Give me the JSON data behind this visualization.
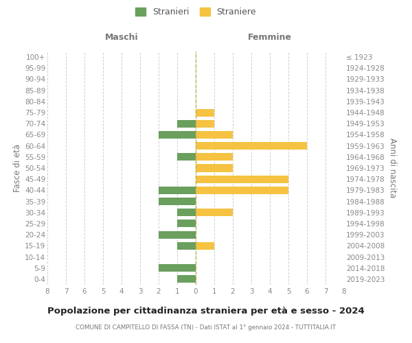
{
  "age_groups": [
    "100+",
    "95-99",
    "90-94",
    "85-89",
    "80-84",
    "75-79",
    "70-74",
    "65-69",
    "60-64",
    "55-59",
    "50-54",
    "45-49",
    "40-44",
    "35-39",
    "30-34",
    "25-29",
    "20-24",
    "15-19",
    "10-14",
    "5-9",
    "0-4"
  ],
  "birth_years": [
    "≤ 1923",
    "1924-1928",
    "1929-1933",
    "1934-1938",
    "1939-1943",
    "1944-1948",
    "1949-1953",
    "1954-1958",
    "1959-1963",
    "1964-1968",
    "1969-1973",
    "1974-1978",
    "1979-1983",
    "1984-1988",
    "1989-1993",
    "1994-1998",
    "1999-2003",
    "2004-2008",
    "2009-2013",
    "2014-2018",
    "2019-2023"
  ],
  "males": [
    0,
    0,
    0,
    0,
    0,
    0,
    1,
    2,
    0,
    1,
    0,
    0,
    2,
    2,
    1,
    1,
    2,
    1,
    0,
    2,
    1
  ],
  "females": [
    0,
    0,
    0,
    0,
    0,
    1,
    1,
    2,
    6,
    2,
    2,
    5,
    5,
    0,
    2,
    0,
    0,
    1,
    0,
    0,
    0
  ],
  "male_color": "#6a9f5e",
  "female_color": "#f5c242",
  "dashed_line_color": "#b8b050",
  "grid_color": "#d0d0d0",
  "title": "Popolazione per cittadinanza straniera per età e sesso - 2024",
  "subtitle": "COMUNE DI CAMPITELLO DI FASSA (TN) - Dati ISTAT al 1° gennaio 2024 - TUTTITALIA.IT",
  "legend_stranieri": "Stranieri",
  "legend_straniere": "Straniere",
  "xlabel_left": "Maschi",
  "xlabel_right": "Femmine",
  "ylabel_left": "Fasce di età",
  "ylabel_right": "Anni di nascita",
  "xlim": 8
}
